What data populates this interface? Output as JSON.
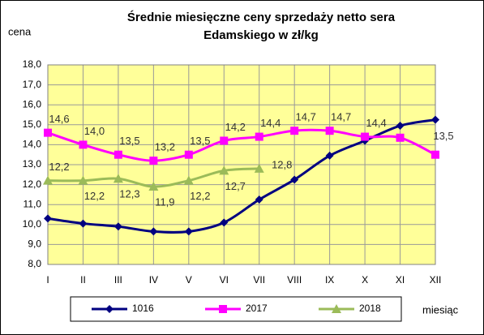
{
  "chart_data": {
    "type": "line",
    "title": [
      "Średnie miesięczne ceny sprzedaży netto sera",
      "Edamskiego w zł/kg"
    ],
    "y_label": "cena",
    "x_label": "miesiąc",
    "categories": [
      "I",
      "II",
      "III",
      "IV",
      "V",
      "VI",
      "VII",
      "VIII",
      "IX",
      "X",
      "XI",
      "XII"
    ],
    "ylim": [
      8,
      18
    ],
    "yticks": [
      {
        "value": 8,
        "label": "8,0"
      },
      {
        "value": 9,
        "label": "9,0"
      },
      {
        "value": 10,
        "label": "10,0"
      },
      {
        "value": 11,
        "label": "11,0"
      },
      {
        "value": 12,
        "label": "12,0"
      },
      {
        "value": 13,
        "label": "13,0"
      },
      {
        "value": 14,
        "label": "14,0"
      },
      {
        "value": 15,
        "label": "15,0"
      },
      {
        "value": 16,
        "label": "16,0"
      },
      {
        "value": 17,
        "label": "17,0"
      },
      {
        "value": 18,
        "label": "18,0"
      }
    ],
    "grid": true,
    "series": [
      {
        "name": "1016",
        "color": "#000080",
        "marker": "diamond",
        "values": [
          10.3,
          10.05,
          9.9,
          9.65,
          9.65,
          10.1,
          11.25,
          12.25,
          13.45,
          14.2,
          14.95,
          15.25
        ]
      },
      {
        "name": "2017",
        "color": "#ff00ff",
        "marker": "square",
        "values": [
          14.6,
          14.0,
          13.5,
          13.2,
          13.5,
          14.2,
          14.4,
          14.7,
          14.7,
          14.4,
          14.35,
          13.5
        ],
        "value_labels": [
          "14,6",
          "14,0",
          "13,5",
          "13,2",
          "13,5",
          "14,2",
          "14,4",
          "14,7",
          "14,7",
          "14,4",
          null,
          "13,5"
        ]
      },
      {
        "name": "2018",
        "color": "#9bbb59",
        "marker": "triangle",
        "values": [
          12.2,
          12.2,
          12.3,
          11.9,
          12.2,
          12.7,
          12.8,
          null,
          null,
          null,
          null,
          null
        ],
        "value_labels": [
          "12,2",
          "12,2",
          "12,3",
          "11,9",
          "12,2",
          "12,7",
          "12,8",
          null,
          null,
          null,
          null,
          null
        ]
      }
    ]
  }
}
